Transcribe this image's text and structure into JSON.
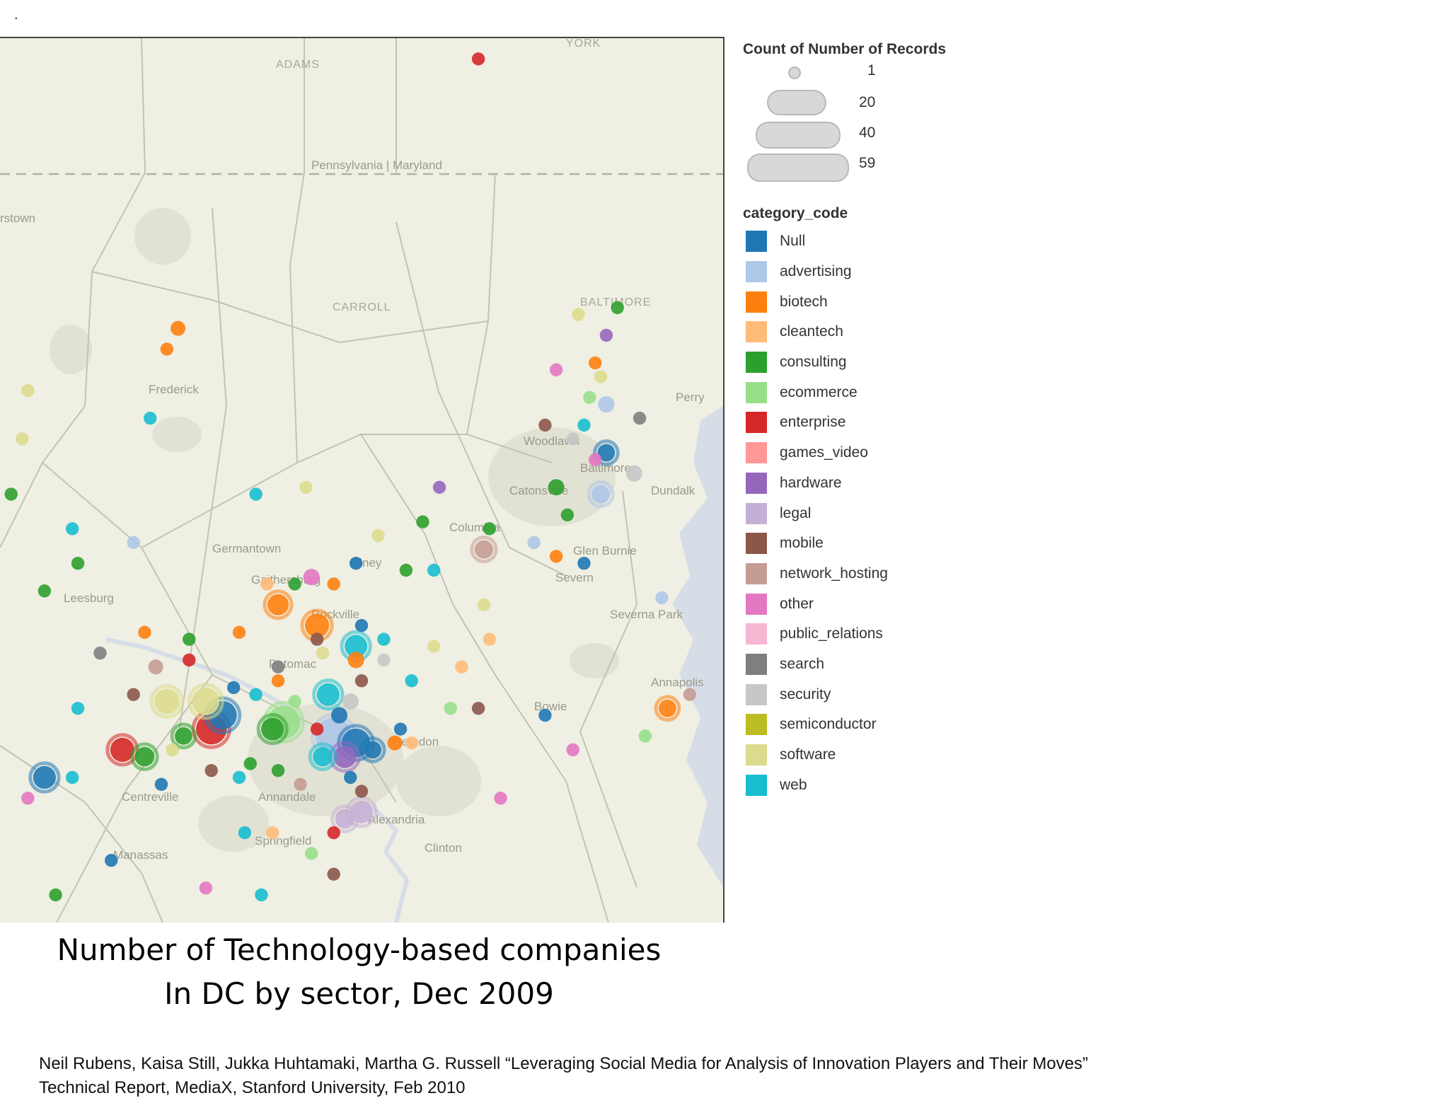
{
  "page": {
    "top_mark": "."
  },
  "chart_data": {
    "type": "scatter",
    "title": "Number of Technology-based companies In DC by sector,  Dec 2009",
    "title_lines": [
      "Number of Technology-based companies",
      "In DC by sector,  Dec 2009"
    ],
    "basemap_labels": [
      "ADAMS",
      "YORK",
      "Pennsylvania | Maryland",
      "rstown",
      "CARROLL",
      "BALTIMORE",
      "Frederick",
      "Perry",
      "Germantown",
      "Gaithersburg",
      "Olney",
      "Columbia",
      "Leesburg",
      "Rockville",
      "Potomac",
      "Glen Burnie",
      "Severn",
      "Severna Park",
      "Annapolis",
      "Bowie",
      "Centreville",
      "Annandale",
      "Springfield",
      "Alexandria",
      "Clinton",
      "Manassas",
      "Herndon",
      "Woodlawn",
      "Catonsville",
      "Dundalk",
      "Baltimore"
    ],
    "size_legend": {
      "title": "Count of Number of Records",
      "values": [
        1,
        20,
        40,
        59
      ]
    },
    "color_legend": {
      "title": "category_code",
      "categories": [
        {
          "name": "Null",
          "color": "#1f77b4"
        },
        {
          "name": "advertising",
          "color": "#aec7e8"
        },
        {
          "name": "biotech",
          "color": "#ff7f0e"
        },
        {
          "name": "cleantech",
          "color": "#ffbb78"
        },
        {
          "name": "consulting",
          "color": "#2ca02c"
        },
        {
          "name": "ecommerce",
          "color": "#98df8a"
        },
        {
          "name": "enterprise",
          "color": "#d62728"
        },
        {
          "name": "games_video",
          "color": "#ff9896"
        },
        {
          "name": "hardware",
          "color": "#9467bd"
        },
        {
          "name": "legal",
          "color": "#c5b0d5"
        },
        {
          "name": "mobile",
          "color": "#8c564b"
        },
        {
          "name": "network_hosting",
          "color": "#c49c94"
        },
        {
          "name": "other",
          "color": "#e377c2"
        },
        {
          "name": "public_relations",
          "color": "#f7b6d2"
        },
        {
          "name": "search",
          "color": "#7f7f7f"
        },
        {
          "name": "security",
          "color": "#c7c7c7"
        },
        {
          "name": "semiconductor",
          "color": "#bcbd22"
        },
        {
          "name": "software",
          "color": "#dbdb8d"
        },
        {
          "name": "web",
          "color": "#17becf"
        }
      ]
    },
    "points": [
      {
        "lon": -76.84,
        "lat": 39.81,
        "category": "enterprise",
        "count": 1
      },
      {
        "lon": -77.38,
        "lat": 39.42,
        "category": "biotech",
        "count": 2
      },
      {
        "lon": -77.4,
        "lat": 39.39,
        "category": "biotech",
        "count": 1
      },
      {
        "lon": -76.59,
        "lat": 39.45,
        "category": "consulting",
        "count": 1
      },
      {
        "lon": -76.7,
        "lat": 39.36,
        "category": "other",
        "count": 1
      },
      {
        "lon": -76.63,
        "lat": 39.37,
        "category": "biotech",
        "count": 1
      },
      {
        "lon": -76.66,
        "lat": 39.44,
        "category": "software",
        "count": 1
      },
      {
        "lon": -76.61,
        "lat": 39.41,
        "category": "hardware",
        "count": 1
      },
      {
        "lon": -76.62,
        "lat": 39.35,
        "category": "software",
        "count": 1
      },
      {
        "lon": -76.64,
        "lat": 39.32,
        "category": "ecommerce",
        "count": 1
      },
      {
        "lon": -76.61,
        "lat": 39.31,
        "category": "advertising",
        "count": 3
      },
      {
        "lon": -76.55,
        "lat": 39.29,
        "category": "search",
        "count": 1
      },
      {
        "lon": -76.72,
        "lat": 39.28,
        "category": "mobile",
        "count": 1
      },
      {
        "lon": -76.65,
        "lat": 39.28,
        "category": "web",
        "count": 1
      },
      {
        "lon": -76.67,
        "lat": 39.26,
        "category": "security",
        "count": 1
      },
      {
        "lon": -76.61,
        "lat": 39.24,
        "category": "Null",
        "count": 4
      },
      {
        "lon": -76.63,
        "lat": 39.23,
        "category": "other",
        "count": 1
      },
      {
        "lon": -76.56,
        "lat": 39.21,
        "category": "security",
        "count": 3
      },
      {
        "lon": -76.62,
        "lat": 39.18,
        "category": "advertising",
        "count": 5
      },
      {
        "lon": -76.7,
        "lat": 39.19,
        "category": "consulting",
        "count": 3
      },
      {
        "lon": -76.68,
        "lat": 39.15,
        "category": "consulting",
        "count": 1
      },
      {
        "lon": -76.91,
        "lat": 39.19,
        "category": "hardware",
        "count": 1
      },
      {
        "lon": -77.24,
        "lat": 39.18,
        "category": "web",
        "count": 1
      },
      {
        "lon": -76.82,
        "lat": 39.13,
        "category": "consulting",
        "count": 1
      },
      {
        "lon": -76.74,
        "lat": 39.11,
        "category": "advertising",
        "count": 1
      },
      {
        "lon": -76.83,
        "lat": 39.1,
        "category": "network_hosting",
        "count": 5
      },
      {
        "lon": -76.7,
        "lat": 39.09,
        "category": "biotech",
        "count": 1
      },
      {
        "lon": -76.65,
        "lat": 39.08,
        "category": "Null",
        "count": 1
      },
      {
        "lon": -77.56,
        "lat": 39.08,
        "category": "consulting",
        "count": 1
      },
      {
        "lon": -77.62,
        "lat": 39.04,
        "category": "consulting",
        "count": 1
      },
      {
        "lon": -77.46,
        "lat": 39.11,
        "category": "advertising",
        "count": 1
      },
      {
        "lon": -77.02,
        "lat": 39.12,
        "category": "software",
        "count": 1
      },
      {
        "lon": -76.97,
        "lat": 39.07,
        "category": "consulting",
        "count": 1
      },
      {
        "lon": -76.92,
        "lat": 39.07,
        "category": "web",
        "count": 1
      },
      {
        "lon": -77.22,
        "lat": 39.05,
        "category": "cleantech",
        "count": 1
      },
      {
        "lon": -77.17,
        "lat": 39.05,
        "category": "consulting",
        "count": 1
      },
      {
        "lon": -77.14,
        "lat": 39.06,
        "category": "other",
        "count": 3
      },
      {
        "lon": -77.1,
        "lat": 39.05,
        "category": "biotech",
        "count": 1
      },
      {
        "lon": -77.2,
        "lat": 39.02,
        "category": "biotech",
        "count": 8
      },
      {
        "lon": -77.13,
        "lat": 38.99,
        "category": "biotech",
        "count": 12
      },
      {
        "lon": -77.52,
        "lat": 38.95,
        "category": "search",
        "count": 1
      },
      {
        "lon": -77.42,
        "lat": 38.93,
        "category": "network_hosting",
        "count": 2
      },
      {
        "lon": -77.36,
        "lat": 38.94,
        "category": "enterprise",
        "count": 1
      },
      {
        "lon": -77.2,
        "lat": 38.93,
        "category": "search",
        "count": 1
      },
      {
        "lon": -77.2,
        "lat": 38.91,
        "category": "biotech",
        "count": 1
      },
      {
        "lon": -77.06,
        "lat": 38.94,
        "category": "biotech",
        "count": 3
      },
      {
        "lon": -77.05,
        "lat": 38.91,
        "category": "mobile",
        "count": 1
      },
      {
        "lon": -76.92,
        "lat": 38.96,
        "category": "software",
        "count": 1
      },
      {
        "lon": -76.87,
        "lat": 38.93,
        "category": "cleantech",
        "count": 1
      },
      {
        "lon": -76.96,
        "lat": 38.91,
        "category": "web",
        "count": 1
      },
      {
        "lon": -76.84,
        "lat": 38.87,
        "category": "mobile",
        "count": 1
      },
      {
        "lon": -76.89,
        "lat": 38.87,
        "category": "ecommerce",
        "count": 1
      },
      {
        "lon": -76.72,
        "lat": 38.86,
        "category": "Null",
        "count": 1
      },
      {
        "lon": -76.5,
        "lat": 38.87,
        "category": "biotech",
        "count": 4
      },
      {
        "lon": -76.46,
        "lat": 38.89,
        "category": "network_hosting",
        "count": 1
      },
      {
        "lon": -76.54,
        "lat": 38.83,
        "category": "ecommerce",
        "count": 1
      },
      {
        "lon": -76.67,
        "lat": 38.81,
        "category": "other",
        "count": 1
      },
      {
        "lon": -77.56,
        "lat": 38.87,
        "category": "web",
        "count": 1
      },
      {
        "lon": -77.46,
        "lat": 38.89,
        "category": "mobile",
        "count": 1
      },
      {
        "lon": -77.4,
        "lat": 38.88,
        "category": "software",
        "count": 14
      },
      {
        "lon": -77.33,
        "lat": 38.88,
        "category": "software",
        "count": 18
      },
      {
        "lon": -77.3,
        "lat": 38.86,
        "category": "Null",
        "count": 20
      },
      {
        "lon": -77.32,
        "lat": 38.84,
        "category": "enterprise",
        "count": 24
      },
      {
        "lon": -77.37,
        "lat": 38.83,
        "category": "consulting",
        "count": 4
      },
      {
        "lon": -77.19,
        "lat": 38.85,
        "category": "ecommerce",
        "count": 30
      },
      {
        "lon": -77.21,
        "lat": 38.84,
        "category": "consulting",
        "count": 10
      },
      {
        "lon": -77.28,
        "lat": 38.9,
        "category": "Null",
        "count": 1
      },
      {
        "lon": -77.24,
        "lat": 38.89,
        "category": "web",
        "count": 1
      },
      {
        "lon": -77.17,
        "lat": 38.88,
        "category": "ecommerce",
        "count": 1
      },
      {
        "lon": -77.11,
        "lat": 38.89,
        "category": "web",
        "count": 10
      },
      {
        "lon": -77.07,
        "lat": 38.88,
        "category": "security",
        "count": 3
      },
      {
        "lon": -77.09,
        "lat": 38.86,
        "category": "Null",
        "count": 3
      },
      {
        "lon": -77.13,
        "lat": 38.84,
        "category": "enterprise",
        "count": 1
      },
      {
        "lon": -77.1,
        "lat": 38.83,
        "category": "advertising",
        "count": 40
      },
      {
        "lon": -77.06,
        "lat": 38.82,
        "category": "Null",
        "count": 20
      },
      {
        "lon": -77.03,
        "lat": 38.81,
        "category": "Null",
        "count": 4
      },
      {
        "lon": -77.08,
        "lat": 38.8,
        "category": "hardware",
        "count": 10
      },
      {
        "lon": -77.12,
        "lat": 38.8,
        "category": "web",
        "count": 6
      },
      {
        "lon": -76.99,
        "lat": 38.82,
        "category": "biotech",
        "count": 2
      },
      {
        "lon": -76.96,
        "lat": 38.82,
        "category": "cleantech",
        "count": 1
      },
      {
        "lon": -76.98,
        "lat": 38.84,
        "category": "Null",
        "count": 1
      },
      {
        "lon": -77.48,
        "lat": 38.81,
        "category": "enterprise",
        "count": 12
      },
      {
        "lon": -77.44,
        "lat": 38.8,
        "category": "consulting",
        "count": 6
      },
      {
        "lon": -77.39,
        "lat": 38.81,
        "category": "software",
        "count": 1
      },
      {
        "lon": -77.62,
        "lat": 38.77,
        "category": "Null",
        "count": 10
      },
      {
        "lon": -77.57,
        "lat": 38.77,
        "category": "web",
        "count": 1
      },
      {
        "lon": -77.41,
        "lat": 38.76,
        "category": "Null",
        "count": 1
      },
      {
        "lon": -77.32,
        "lat": 38.78,
        "category": "mobile",
        "count": 1
      },
      {
        "lon": -77.27,
        "lat": 38.77,
        "category": "web",
        "count": 1
      },
      {
        "lon": -77.25,
        "lat": 38.79,
        "category": "consulting",
        "count": 1
      },
      {
        "lon": -77.2,
        "lat": 38.78,
        "category": "consulting",
        "count": 1
      },
      {
        "lon": -77.16,
        "lat": 38.76,
        "category": "network_hosting",
        "count": 1
      },
      {
        "lon": -77.07,
        "lat": 38.77,
        "category": "Null",
        "count": 1
      },
      {
        "lon": -77.05,
        "lat": 38.75,
        "category": "mobile",
        "count": 1
      },
      {
        "lon": -77.05,
        "lat": 38.72,
        "category": "legal",
        "count": 10
      },
      {
        "lon": -77.08,
        "lat": 38.71,
        "category": "legal",
        "count": 6
      },
      {
        "lon": -77.1,
        "lat": 38.69,
        "category": "enterprise",
        "count": 1
      },
      {
        "lon": -77.21,
        "lat": 38.69,
        "category": "cleantech",
        "count": 1
      },
      {
        "lon": -77.26,
        "lat": 38.69,
        "category": "web",
        "count": 1
      },
      {
        "lon": -77.14,
        "lat": 38.66,
        "category": "ecommerce",
        "count": 1
      },
      {
        "lon": -77.1,
        "lat": 38.63,
        "category": "mobile",
        "count": 1
      },
      {
        "lon": -77.65,
        "lat": 38.74,
        "category": "other",
        "count": 1
      },
      {
        "lon": -77.5,
        "lat": 38.65,
        "category": "Null",
        "count": 1
      },
      {
        "lon": -77.33,
        "lat": 38.61,
        "category": "other",
        "count": 1
      },
      {
        "lon": -77.23,
        "lat": 38.6,
        "category": "web",
        "count": 1
      },
      {
        "lon": -77.6,
        "lat": 38.6,
        "category": "consulting",
        "count": 1
      },
      {
        "lon": -76.8,
        "lat": 38.74,
        "category": "other",
        "count": 1
      },
      {
        "lon": -77.44,
        "lat": 38.98,
        "category": "biotech",
        "count": 1
      },
      {
        "lon": -77.36,
        "lat": 38.97,
        "category": "consulting",
        "count": 1
      },
      {
        "lon": -77.27,
        "lat": 38.98,
        "category": "biotech",
        "count": 1
      },
      {
        "lon": -77.13,
        "lat": 38.97,
        "category": "mobile",
        "count": 1
      },
      {
        "lon": -77.05,
        "lat": 38.99,
        "category": "Null",
        "count": 1
      },
      {
        "lon": -77.01,
        "lat": 38.97,
        "category": "web",
        "count": 1
      },
      {
        "lon": -77.01,
        "lat": 38.94,
        "category": "security",
        "count": 1
      },
      {
        "lon": -77.06,
        "lat": 38.96,
        "category": "web",
        "count": 10
      },
      {
        "lon": -77.12,
        "lat": 38.95,
        "category": "software",
        "count": 1
      },
      {
        "lon": -76.83,
        "lat": 39.02,
        "category": "software",
        "count": 1
      },
      {
        "lon": -76.82,
        "lat": 38.97,
        "category": "cleantech",
        "count": 1
      },
      {
        "lon": -77.57,
        "lat": 39.13,
        "category": "web",
        "count": 1
      },
      {
        "lon": -77.43,
        "lat": 39.29,
        "category": "web",
        "count": 1
      },
      {
        "lon": -77.66,
        "lat": 39.26,
        "category": "software",
        "count": 1
      },
      {
        "lon": -77.65,
        "lat": 39.33,
        "category": "software",
        "count": 1
      },
      {
        "lon": -77.68,
        "lat": 39.18,
        "category": "consulting",
        "count": 1
      },
      {
        "lon": -77.15,
        "lat": 39.19,
        "category": "software",
        "count": 1
      },
      {
        "lon": -76.51,
        "lat": 39.03,
        "category": "advertising",
        "count": 1
      },
      {
        "lon": -77.06,
        "lat": 39.08,
        "category": "Null",
        "count": 1
      },
      {
        "lon": -76.94,
        "lat": 39.14,
        "category": "consulting",
        "count": 1
      }
    ]
  },
  "citation": {
    "line1": "Neil Rubens, Kaisa Still, Jukka Huhtamaki, Martha G. Russell “Leveraging Social Media for Analysis of Innovation Players and Their Moves”",
    "line2": "Technical Report, MediaX, Stanford University, Feb 2010"
  }
}
